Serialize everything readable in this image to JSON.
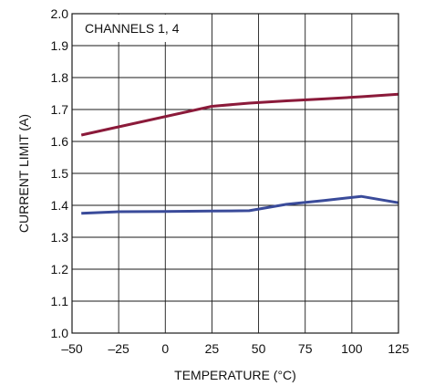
{
  "chart_data": {
    "type": "line",
    "title": "",
    "annotation": "CHANNELS 1, 4",
    "xlabel": "TEMPERATURE (°C)",
    "ylabel": "CURRENT LIMIT (A)",
    "xlim": [
      -50,
      125
    ],
    "ylim": [
      1.0,
      2.0
    ],
    "xticks": [
      -50,
      -25,
      0,
      25,
      50,
      75,
      100,
      125
    ],
    "xtick_labels": [
      "–50",
      "–25",
      "0",
      "25",
      "50",
      "75",
      "100",
      "125"
    ],
    "yticks": [
      1.0,
      1.1,
      1.2,
      1.3,
      1.4,
      1.5,
      1.6,
      1.7,
      1.8,
      1.9,
      2.0
    ],
    "ytick_labels": [
      "1.0",
      "1.1",
      "1.2",
      "1.3",
      "1.4",
      "1.5",
      "1.6",
      "1.7",
      "1.8",
      "1.9",
      "2.0"
    ],
    "grid": true,
    "series": [
      {
        "color": "#8b1a3a",
        "x": [
          -45,
          25,
          45,
          65,
          85,
          105,
          125
        ],
        "y": [
          1.62,
          1.71,
          1.72,
          1.727,
          1.733,
          1.74,
          1.748
        ]
      },
      {
        "color": "#3a4b9a",
        "x": [
          -45,
          -25,
          0,
          25,
          45,
          65,
          85,
          105,
          125
        ],
        "y": [
          1.375,
          1.38,
          1.381,
          1.382,
          1.383,
          1.403,
          1.415,
          1.428,
          1.408
        ]
      }
    ]
  }
}
